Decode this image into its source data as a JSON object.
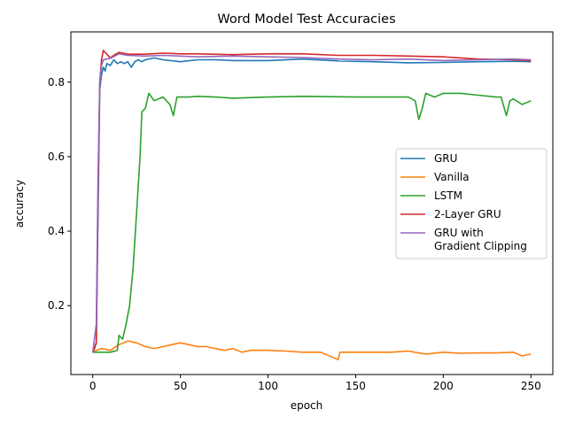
{
  "chart_data": {
    "type": "line",
    "title": "Word Model Test Accuracies",
    "xlabel": "epoch",
    "ylabel": "accuracy",
    "xlim": [
      -12.5,
      262.5
    ],
    "ylim": [
      0.015,
      0.935
    ],
    "xticks": [
      0,
      50,
      100,
      150,
      200,
      250
    ],
    "yticks": [
      0.2,
      0.4,
      0.6,
      0.8
    ],
    "grid": false,
    "legend_position": "center-right",
    "series": [
      {
        "name": "GRU",
        "color": "#1f77b4",
        "points": [
          [
            0,
            0.075
          ],
          [
            1,
            0.085
          ],
          [
            2,
            0.1
          ],
          [
            3,
            0.45
          ],
          [
            4,
            0.78
          ],
          [
            5,
            0.82
          ],
          [
            6,
            0.84
          ],
          [
            7,
            0.83
          ],
          [
            8,
            0.85
          ],
          [
            10,
            0.845
          ],
          [
            12,
            0.86
          ],
          [
            14,
            0.85
          ],
          [
            16,
            0.855
          ],
          [
            18,
            0.85
          ],
          [
            20,
            0.855
          ],
          [
            22,
            0.84
          ],
          [
            24,
            0.855
          ],
          [
            26,
            0.86
          ],
          [
            28,
            0.855
          ],
          [
            30,
            0.86
          ],
          [
            35,
            0.865
          ],
          [
            40,
            0.86
          ],
          [
            50,
            0.855
          ],
          [
            60,
            0.86
          ],
          [
            70,
            0.86
          ],
          [
            80,
            0.858
          ],
          [
            100,
            0.858
          ],
          [
            120,
            0.862
          ],
          [
            140,
            0.857
          ],
          [
            160,
            0.855
          ],
          [
            180,
            0.852
          ],
          [
            200,
            0.853
          ],
          [
            220,
            0.855
          ],
          [
            240,
            0.856
          ],
          [
            250,
            0.855
          ]
        ]
      },
      {
        "name": "Vanilla",
        "color": "#ff7f0e",
        "points": [
          [
            0,
            0.075
          ],
          [
            2,
            0.08
          ],
          [
            5,
            0.085
          ],
          [
            10,
            0.08
          ],
          [
            15,
            0.095
          ],
          [
            20,
            0.105
          ],
          [
            25,
            0.1
          ],
          [
            30,
            0.09
          ],
          [
            35,
            0.085
          ],
          [
            40,
            0.09
          ],
          [
            45,
            0.095
          ],
          [
            50,
            0.1
          ],
          [
            55,
            0.095
          ],
          [
            60,
            0.09
          ],
          [
            65,
            0.09
          ],
          [
            70,
            0.085
          ],
          [
            75,
            0.08
          ],
          [
            80,
            0.085
          ],
          [
            85,
            0.075
          ],
          [
            90,
            0.08
          ],
          [
            100,
            0.08
          ],
          [
            110,
            0.078
          ],
          [
            120,
            0.075
          ],
          [
            130,
            0.075
          ],
          [
            140,
            0.055
          ],
          [
            141,
            0.075
          ],
          [
            150,
            0.075
          ],
          [
            170,
            0.075
          ],
          [
            180,
            0.078
          ],
          [
            190,
            0.07
          ],
          [
            200,
            0.075
          ],
          [
            210,
            0.072
          ],
          [
            220,
            0.073
          ],
          [
            230,
            0.073
          ],
          [
            240,
            0.075
          ],
          [
            245,
            0.065
          ],
          [
            250,
            0.07
          ]
        ]
      },
      {
        "name": "LSTM",
        "color": "#2ca02c",
        "points": [
          [
            0,
            0.075
          ],
          [
            5,
            0.075
          ],
          [
            10,
            0.075
          ],
          [
            14,
            0.08
          ],
          [
            15,
            0.12
          ],
          [
            17,
            0.11
          ],
          [
            19,
            0.15
          ],
          [
            21,
            0.2
          ],
          [
            23,
            0.3
          ],
          [
            25,
            0.45
          ],
          [
            27,
            0.6
          ],
          [
            28,
            0.72
          ],
          [
            30,
            0.73
          ],
          [
            32,
            0.77
          ],
          [
            35,
            0.75
          ],
          [
            40,
            0.76
          ],
          [
            44,
            0.74
          ],
          [
            46,
            0.71
          ],
          [
            48,
            0.76
          ],
          [
            55,
            0.76
          ],
          [
            60,
            0.762
          ],
          [
            70,
            0.76
          ],
          [
            80,
            0.757
          ],
          [
            100,
            0.76
          ],
          [
            120,
            0.762
          ],
          [
            150,
            0.76
          ],
          [
            180,
            0.76
          ],
          [
            184,
            0.75
          ],
          [
            186,
            0.7
          ],
          [
            188,
            0.73
          ],
          [
            190,
            0.77
          ],
          [
            195,
            0.76
          ],
          [
            200,
            0.77
          ],
          [
            210,
            0.77
          ],
          [
            220,
            0.765
          ],
          [
            230,
            0.76
          ],
          [
            233,
            0.76
          ],
          [
            236,
            0.71
          ],
          [
            238,
            0.75
          ],
          [
            240,
            0.755
          ],
          [
            245,
            0.74
          ],
          [
            250,
            0.75
          ]
        ]
      },
      {
        "name": "2-Layer GRU",
        "color": "#d62728",
        "points": [
          [
            0,
            0.075
          ],
          [
            2,
            0.1
          ],
          [
            3,
            0.5
          ],
          [
            4,
            0.8
          ],
          [
            5,
            0.86
          ],
          [
            6,
            0.885
          ],
          [
            8,
            0.875
          ],
          [
            10,
            0.865
          ],
          [
            12,
            0.872
          ],
          [
            15,
            0.88
          ],
          [
            20,
            0.875
          ],
          [
            30,
            0.875
          ],
          [
            40,
            0.878
          ],
          [
            50,
            0.876
          ],
          [
            60,
            0.876
          ],
          [
            80,
            0.874
          ],
          [
            100,
            0.876
          ],
          [
            120,
            0.876
          ],
          [
            140,
            0.872
          ],
          [
            160,
            0.872
          ],
          [
            180,
            0.87
          ],
          [
            200,
            0.868
          ],
          [
            220,
            0.862
          ],
          [
            240,
            0.86
          ],
          [
            250,
            0.858
          ]
        ]
      },
      {
        "name": "GRU with\nGradient Clipping",
        "color": "#9467bd",
        "points": [
          [
            0,
            0.075
          ],
          [
            2,
            0.15
          ],
          [
            3,
            0.55
          ],
          [
            4,
            0.8
          ],
          [
            5,
            0.845
          ],
          [
            6,
            0.86
          ],
          [
            8,
            0.862
          ],
          [
            10,
            0.864
          ],
          [
            15,
            0.876
          ],
          [
            20,
            0.872
          ],
          [
            30,
            0.87
          ],
          [
            40,
            0.872
          ],
          [
            60,
            0.868
          ],
          [
            80,
            0.87
          ],
          [
            100,
            0.868
          ],
          [
            120,
            0.866
          ],
          [
            140,
            0.862
          ],
          [
            160,
            0.86
          ],
          [
            180,
            0.862
          ],
          [
            200,
            0.858
          ],
          [
            220,
            0.86
          ],
          [
            240,
            0.862
          ],
          [
            250,
            0.86
          ]
        ]
      }
    ]
  }
}
